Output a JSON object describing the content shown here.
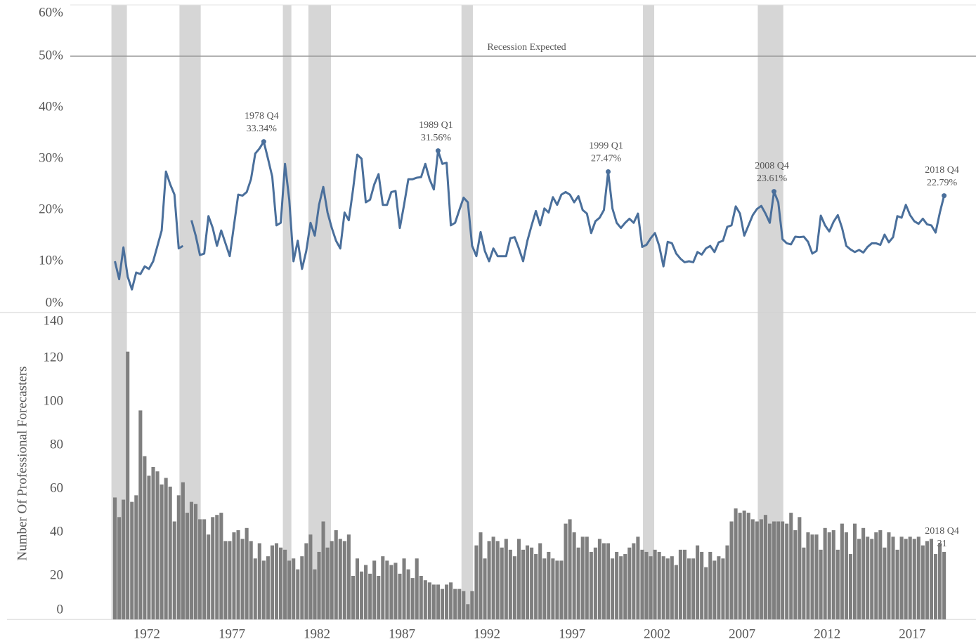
{
  "chart_data": [
    {
      "type": "line",
      "color": "#4a6f9b",
      "xlim": [
        1967.5,
        2020.75
      ],
      "ylim": [
        0,
        60
      ],
      "yticks": [
        {
          "value": 0,
          "label": "0%"
        },
        {
          "value": 10,
          "label": "10%"
        },
        {
          "value": 20,
          "label": "20%"
        },
        {
          "value": 30,
          "label": "30%"
        },
        {
          "value": 40,
          "label": "40%"
        },
        {
          "value": 50,
          "label": "50%"
        },
        {
          "value": 60,
          "label": "60%"
        }
      ],
      "reference_line": {
        "value": 50,
        "label": "Recession Expected"
      },
      "recessions": [
        [
          1969.92,
          1970.83
        ],
        [
          1973.92,
          1975.17
        ],
        [
          1980.0,
          1980.5
        ],
        [
          1981.5,
          1982.83
        ],
        [
          1990.5,
          1991.17
        ],
        [
          2001.17,
          2001.83
        ],
        [
          2007.92,
          2009.42
        ]
      ],
      "band_color": "#d6d6d6",
      "x": [
        1970.125,
        1970.375,
        1970.625,
        1970.875,
        1971.125,
        1971.375,
        1971.625,
        1971.875,
        1972.125,
        1972.375,
        1972.625,
        1972.875,
        1973.125,
        1973.375,
        1973.625,
        1973.875,
        1974.125,
        1974.375,
        1974.625,
        1974.875,
        1975.125,
        1975.375,
        1975.625,
        1975.875,
        1976.125,
        1976.375,
        1976.625,
        1976.875,
        1977.125,
        1977.375,
        1977.625,
        1977.875,
        1978.125,
        1978.375,
        1978.625,
        1978.875,
        1979.125,
        1979.375,
        1979.625,
        1979.875,
        1980.125,
        1980.375,
        1980.625,
        1980.875,
        1981.125,
        1981.375,
        1981.625,
        1981.875,
        1982.125,
        1982.375,
        1982.625,
        1982.875,
        1983.125,
        1983.375,
        1983.625,
        1983.875,
        1984.125,
        1984.375,
        1984.625,
        1984.875,
        1985.125,
        1985.375,
        1985.625,
        1985.875,
        1986.125,
        1986.375,
        1986.625,
        1986.875,
        1987.125,
        1987.375,
        1987.625,
        1987.875,
        1988.125,
        1988.375,
        1988.625,
        1988.875,
        1989.125,
        1989.375,
        1989.625,
        1989.875,
        1990.125,
        1990.375,
        1990.625,
        1990.875,
        1991.125,
        1991.375,
        1991.625,
        1991.875,
        1992.125,
        1992.375,
        1992.625,
        1992.875,
        1993.125,
        1993.375,
        1993.625,
        1993.875,
        1994.125,
        1994.375,
        1994.625,
        1994.875,
        1995.125,
        1995.375,
        1995.625,
        1995.875,
        1996.125,
        1996.375,
        1996.625,
        1996.875,
        1997.125,
        1997.375,
        1997.625,
        1997.875,
        1998.125,
        1998.375,
        1998.625,
        1998.875,
        1999.125,
        1999.375,
        1999.625,
        1999.875,
        2000.125,
        2000.375,
        2000.625,
        2000.875,
        2001.125,
        2001.375,
        2001.625,
        2001.875,
        2002.125,
        2002.375,
        2002.625,
        2002.875,
        2003.125,
        2003.375,
        2003.625,
        2003.875,
        2004.125,
        2004.375,
        2004.625,
        2004.875,
        2005.125,
        2005.375,
        2005.625,
        2005.875,
        2006.125,
        2006.375,
        2006.625,
        2006.875,
        2007.125,
        2007.375,
        2007.625,
        2007.875,
        2008.125,
        2008.375,
        2008.625,
        2008.875,
        2009.125,
        2009.375,
        2009.625,
        2009.875,
        2010.125,
        2010.375,
        2010.625,
        2010.875,
        2011.125,
        2011.375,
        2011.625,
        2011.875,
        2012.125,
        2012.375,
        2012.625,
        2012.875,
        2013.125,
        2013.375,
        2013.625,
        2013.875,
        2014.125,
        2014.375,
        2014.625,
        2014.875,
        2015.125,
        2015.375,
        2015.625,
        2015.875,
        2016.125,
        2016.375,
        2016.625,
        2016.875,
        2017.125,
        2017.375,
        2017.625,
        2017.875,
        2018.125,
        2018.375,
        2018.625,
        2018.875
      ],
      "values": [
        10,
        6.5,
        12.7,
        7,
        4.5,
        7.8,
        7.5,
        9,
        8.5,
        10,
        13,
        16,
        27.5,
        25,
        23,
        12.5,
        13,
        null,
        18,
        15,
        11.2,
        11.5,
        18.8,
        16.5,
        13,
        16,
        13.5,
        11,
        17,
        23,
        22.8,
        23.5,
        26,
        31,
        32,
        33.34,
        30,
        26.5,
        17,
        17.5,
        29,
        22,
        10,
        14,
        8.5,
        12,
        17.5,
        15,
        21,
        24.5,
        19.5,
        16.5,
        14,
        12.5,
        19.5,
        18,
        24,
        30.8,
        30,
        21.5,
        22,
        25,
        27,
        21,
        21,
        23.5,
        23.7,
        16.5,
        21,
        26,
        26,
        26.3,
        26.4,
        29,
        26,
        24,
        31.56,
        29,
        29.2,
        17,
        17.5,
        20,
        22.4,
        21.5,
        13,
        11,
        15.7,
        12,
        10,
        12.5,
        11,
        11,
        11,
        14.5,
        14.7,
        12.5,
        10,
        14,
        17,
        19.8,
        17,
        20.3,
        19.5,
        22.5,
        21,
        23,
        23.5,
        23,
        21.5,
        22.7,
        20,
        19.3,
        15.5,
        17.8,
        18.5,
        20,
        27.47,
        20.3,
        17.5,
        16.5,
        17.5,
        18.3,
        17.5,
        19.3,
        12.8,
        13.2,
        14.5,
        15.5,
        13,
        9,
        13.8,
        13.5,
        11.5,
        10.5,
        9.8,
        10,
        9.8,
        11.8,
        11.3,
        12.5,
        13,
        11.8,
        13.7,
        14,
        16.7,
        17,
        20.7,
        19.3,
        15,
        17,
        19,
        20.2,
        20.8,
        19.3,
        17.5,
        23.61,
        21.5,
        14.3,
        13.5,
        13.3,
        14.8,
        14.7,
        14.8,
        13.8,
        11.5,
        12,
        18.9,
        17,
        15.8,
        17.7,
        19,
        16.5,
        13,
        12.3,
        11.8,
        12.2,
        11.7,
        12.8,
        13.5,
        13.5,
        13.2,
        15.2,
        13.7,
        14.7,
        18.8,
        18.5,
        21,
        19,
        17.8,
        17.3,
        18.3,
        17.2,
        17,
        15.6,
        19.5,
        22.79
      ],
      "annotations": [
        {
          "x": 1978.875,
          "label": "1978 Q4",
          "value": 33.34,
          "value_label": "33.34%"
        },
        {
          "x": 1989.125,
          "label": "1989 Q1",
          "value": 31.56,
          "value_label": "31.56%"
        },
        {
          "x": 1999.125,
          "label": "1999 Q1",
          "value": 27.47,
          "value_label": "27.47%"
        },
        {
          "x": 2008.875,
          "label": "2008 Q4",
          "value": 23.61,
          "value_label": "23.61%"
        },
        {
          "x": 2018.875,
          "label": "2018 Q4",
          "value": 22.79,
          "value_label": "22.79%"
        }
      ]
    },
    {
      "type": "bar",
      "color": "#7f7f7f",
      "ylabel": "Number Of Professional Forecasters",
      "xlim": [
        1967.5,
        2020.75
      ],
      "ylim": [
        0,
        140
      ],
      "yticks": [
        0,
        20,
        40,
        60,
        80,
        100,
        120,
        140
      ],
      "xticks": [
        1972,
        1977,
        1982,
        1987,
        1992,
        1997,
        2002,
        2007,
        2012,
        2017
      ],
      "x": [
        1970.125,
        1970.375,
        1970.625,
        1970.875,
        1971.125,
        1971.375,
        1971.625,
        1971.875,
        1972.125,
        1972.375,
        1972.625,
        1972.875,
        1973.125,
        1973.375,
        1973.625,
        1973.875,
        1974.125,
        1974.375,
        1974.625,
        1974.875,
        1975.125,
        1975.375,
        1975.625,
        1975.875,
        1976.125,
        1976.375,
        1976.625,
        1976.875,
        1977.125,
        1977.375,
        1977.625,
        1977.875,
        1978.125,
        1978.375,
        1978.625,
        1978.875,
        1979.125,
        1979.375,
        1979.625,
        1979.875,
        1980.125,
        1980.375,
        1980.625,
        1980.875,
        1981.125,
        1981.375,
        1981.625,
        1981.875,
        1982.125,
        1982.375,
        1982.625,
        1982.875,
        1983.125,
        1983.375,
        1983.625,
        1983.875,
        1984.125,
        1984.375,
        1984.625,
        1984.875,
        1985.125,
        1985.375,
        1985.625,
        1985.875,
        1986.125,
        1986.375,
        1986.625,
        1986.875,
        1987.125,
        1987.375,
        1987.625,
        1987.875,
        1988.125,
        1988.375,
        1988.625,
        1988.875,
        1989.125,
        1989.375,
        1989.625,
        1989.875,
        1990.125,
        1990.375,
        1990.625,
        1990.875,
        1991.125,
        1991.375,
        1991.625,
        1991.875,
        1992.125,
        1992.375,
        1992.625,
        1992.875,
        1993.125,
        1993.375,
        1993.625,
        1993.875,
        1994.125,
        1994.375,
        1994.625,
        1994.875,
        1995.125,
        1995.375,
        1995.625,
        1995.875,
        1996.125,
        1996.375,
        1996.625,
        1996.875,
        1997.125,
        1997.375,
        1997.625,
        1997.875,
        1998.125,
        1998.375,
        1998.625,
        1998.875,
        1999.125,
        1999.375,
        1999.625,
        1999.875,
        2000.125,
        2000.375,
        2000.625,
        2000.875,
        2001.125,
        2001.375,
        2001.625,
        2001.875,
        2002.125,
        2002.375,
        2002.625,
        2002.875,
        2003.125,
        2003.375,
        2003.625,
        2003.875,
        2004.125,
        2004.375,
        2004.625,
        2004.875,
        2005.125,
        2005.375,
        2005.625,
        2005.875,
        2006.125,
        2006.375,
        2006.625,
        2006.875,
        2007.125,
        2007.375,
        2007.625,
        2007.875,
        2008.125,
        2008.375,
        2008.625,
        2008.875,
        2009.125,
        2009.375,
        2009.625,
        2009.875,
        2010.125,
        2010.375,
        2010.625,
        2010.875,
        2011.125,
        2011.375,
        2011.625,
        2011.875,
        2012.125,
        2012.375,
        2012.625,
        2012.875,
        2013.125,
        2013.375,
        2013.625,
        2013.875,
        2014.125,
        2014.375,
        2014.625,
        2014.875,
        2015.125,
        2015.375,
        2015.625,
        2015.875,
        2016.125,
        2016.375,
        2016.625,
        2016.875,
        2017.125,
        2017.375,
        2017.625,
        2017.875,
        2018.125,
        2018.375,
        2018.625,
        2018.875
      ],
      "values": [
        56,
        47,
        55,
        123,
        54,
        57,
        96,
        75,
        66,
        70,
        68,
        62,
        65,
        61,
        45,
        57,
        63,
        49,
        54,
        53,
        46,
        46,
        39,
        47,
        48,
        49,
        36,
        36,
        40,
        41,
        37,
        42,
        36,
        28,
        35,
        27,
        29,
        34,
        35,
        33,
        32,
        27,
        28,
        23,
        29,
        35,
        39,
        23,
        31,
        45,
        33,
        36,
        41,
        37,
        36,
        39,
        20,
        28,
        22,
        25,
        21,
        27,
        20,
        29,
        27,
        25,
        26,
        21,
        28,
        23,
        19,
        28,
        20,
        18,
        17,
        16,
        16,
        14,
        16,
        17,
        14,
        14,
        13,
        7,
        13,
        34,
        40,
        28,
        36,
        38,
        36,
        33,
        37,
        32,
        29,
        37,
        32,
        34,
        33,
        30,
        35,
        28,
        31,
        28,
        27,
        27,
        44,
        46,
        40,
        33,
        38,
        38,
        31,
        33,
        37,
        35,
        35,
        28,
        31,
        29,
        30,
        33,
        35,
        38,
        32,
        31,
        29,
        32,
        31,
        29,
        28,
        29,
        25,
        32,
        32,
        28,
        28,
        34,
        31,
        24,
        31,
        27,
        29,
        28,
        34,
        45,
        51,
        49,
        50,
        49,
        46,
        45,
        46,
        48,
        44,
        45,
        45,
        45,
        44,
        49,
        41,
        47,
        33,
        40,
        39,
        39,
        32,
        42,
        40,
        41,
        32,
        44,
        40,
        30,
        44,
        37,
        42,
        38,
        37,
        40,
        41,
        33,
        40,
        38,
        32,
        38,
        37,
        38,
        37,
        38,
        34,
        36,
        37,
        30,
        35,
        31
      ],
      "annotations": [
        {
          "x": 2018.875,
          "label": "2018 Q4",
          "value": 31
        }
      ]
    }
  ]
}
